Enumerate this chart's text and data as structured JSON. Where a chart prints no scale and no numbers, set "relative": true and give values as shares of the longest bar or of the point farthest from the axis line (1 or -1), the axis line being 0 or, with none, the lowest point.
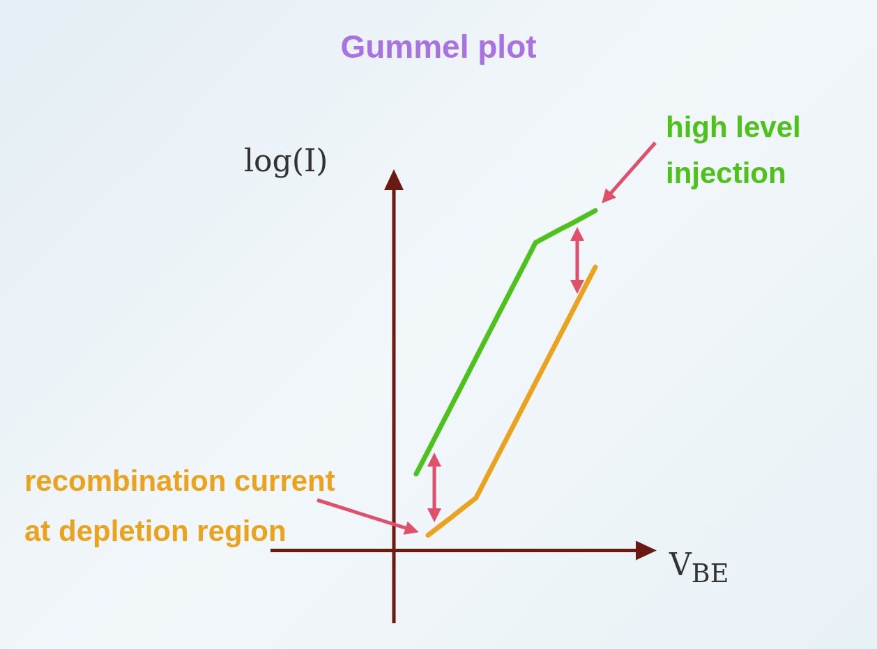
{
  "chart_data": {
    "type": "line",
    "title": "Gummel plot",
    "xlabel": "V$_{BE}$",
    "ylabel": "log(I)",
    "relative": true,
    "legend": false,
    "marker": "none",
    "line_style": "solid",
    "annotations": [
      "high level injection",
      "recombination current at depletion region"
    ],
    "categories": [
      null,
      null,
      null,
      null,
      null,
      null,
      null,
      null,
      null,
      null,
      null,
      null,
      null,
      null,
      null,
      null
    ],
    "series": [
      {
        "color": "#4cc21a",
        "values": [
          0.225,
          0.293,
          0.361,
          0.429,
          0.497,
          0.566,
          0.634,
          0.702,
          0.77,
          0.838,
          0.906,
          0.925,
          0.944,
          0.962,
          0.981,
          1
        ]
      },
      {
        "color": "#eba21c",
        "values": [
          null,
          0.045,
          0.072,
          0.099,
          0.127,
          0.154,
          0.222,
          0.29,
          0.358,
          0.426,
          0.494,
          0.562,
          0.63,
          0.698,
          0.766,
          0.834
        ]
      }
    ]
  }
}
